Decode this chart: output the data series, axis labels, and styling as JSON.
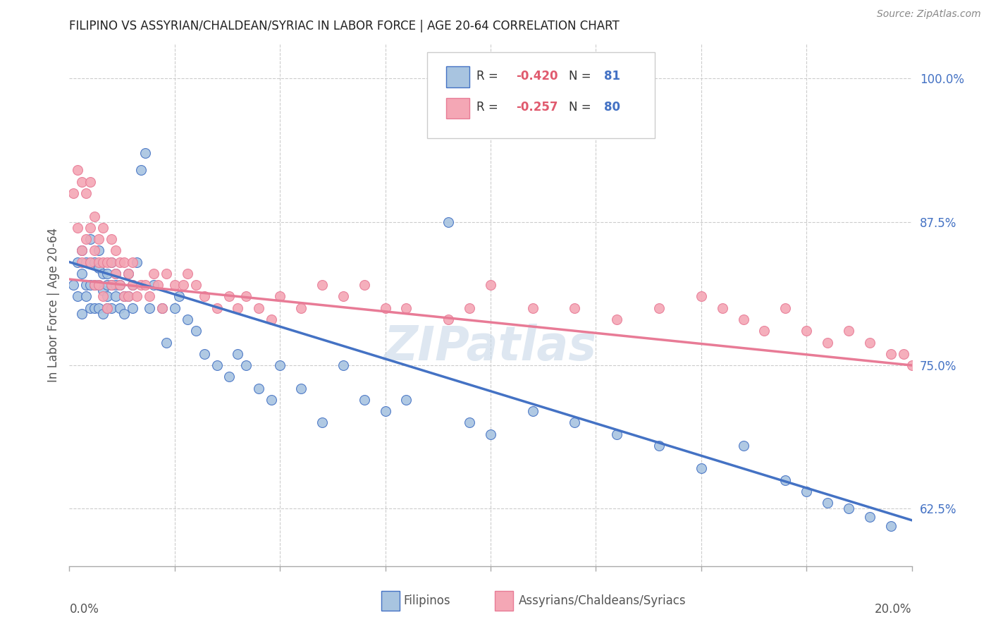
{
  "title": "FILIPINO VS ASSYRIAN/CHALDEAN/SYRIAC IN LABOR FORCE | AGE 20-64 CORRELATION CHART",
  "source": "Source: ZipAtlas.com",
  "ylabel": "In Labor Force | Age 20-64",
  "ytick_labels": [
    "62.5%",
    "75.0%",
    "87.5%",
    "100.0%"
  ],
  "ytick_values": [
    0.625,
    0.75,
    0.875,
    1.0
  ],
  "xlim": [
    0.0,
    0.2
  ],
  "ylim": [
    0.575,
    1.03
  ],
  "blue_color": "#a8c4e0",
  "blue_line_color": "#4472c4",
  "pink_color": "#f4a7b5",
  "pink_line_color": "#e87b96",
  "blue_R": -0.42,
  "blue_N": 81,
  "pink_R": -0.257,
  "pink_N": 80,
  "watermark": "ZIPatlas",
  "watermark_color": "#c8d8e8",
  "blue_x": [
    0.001,
    0.002,
    0.002,
    0.003,
    0.003,
    0.003,
    0.004,
    0.004,
    0.004,
    0.005,
    0.005,
    0.005,
    0.005,
    0.006,
    0.006,
    0.006,
    0.007,
    0.007,
    0.007,
    0.007,
    0.008,
    0.008,
    0.008,
    0.009,
    0.009,
    0.009,
    0.009,
    0.01,
    0.01,
    0.01,
    0.011,
    0.011,
    0.011,
    0.012,
    0.012,
    0.013,
    0.013,
    0.014,
    0.014,
    0.015,
    0.015,
    0.016,
    0.017,
    0.018,
    0.019,
    0.02,
    0.022,
    0.023,
    0.025,
    0.026,
    0.028,
    0.03,
    0.032,
    0.035,
    0.038,
    0.04,
    0.042,
    0.045,
    0.048,
    0.05,
    0.055,
    0.06,
    0.065,
    0.07,
    0.075,
    0.08,
    0.09,
    0.095,
    0.1,
    0.11,
    0.12,
    0.13,
    0.14,
    0.15,
    0.16,
    0.17,
    0.175,
    0.18,
    0.185,
    0.19,
    0.195
  ],
  "blue_y": [
    0.82,
    0.84,
    0.81,
    0.83,
    0.85,
    0.795,
    0.82,
    0.84,
    0.81,
    0.8,
    0.82,
    0.84,
    0.86,
    0.8,
    0.82,
    0.84,
    0.8,
    0.82,
    0.835,
    0.85,
    0.795,
    0.815,
    0.83,
    0.8,
    0.82,
    0.81,
    0.83,
    0.8,
    0.82,
    0.84,
    0.81,
    0.83,
    0.82,
    0.8,
    0.82,
    0.795,
    0.81,
    0.81,
    0.83,
    0.8,
    0.82,
    0.84,
    0.92,
    0.935,
    0.8,
    0.82,
    0.8,
    0.77,
    0.8,
    0.81,
    0.79,
    0.78,
    0.76,
    0.75,
    0.74,
    0.76,
    0.75,
    0.73,
    0.72,
    0.75,
    0.73,
    0.7,
    0.75,
    0.72,
    0.71,
    0.72,
    0.875,
    0.7,
    0.69,
    0.71,
    0.7,
    0.69,
    0.68,
    0.66,
    0.68,
    0.65,
    0.64,
    0.63,
    0.625,
    0.618,
    0.61
  ],
  "pink_x": [
    0.001,
    0.002,
    0.002,
    0.003,
    0.003,
    0.003,
    0.004,
    0.004,
    0.005,
    0.005,
    0.005,
    0.006,
    0.006,
    0.006,
    0.007,
    0.007,
    0.007,
    0.008,
    0.008,
    0.008,
    0.009,
    0.009,
    0.01,
    0.01,
    0.01,
    0.011,
    0.011,
    0.012,
    0.012,
    0.013,
    0.013,
    0.014,
    0.014,
    0.015,
    0.015,
    0.016,
    0.017,
    0.018,
    0.019,
    0.02,
    0.021,
    0.022,
    0.023,
    0.025,
    0.027,
    0.028,
    0.03,
    0.032,
    0.035,
    0.038,
    0.04,
    0.042,
    0.045,
    0.048,
    0.05,
    0.055,
    0.06,
    0.065,
    0.07,
    0.075,
    0.08,
    0.09,
    0.095,
    0.1,
    0.11,
    0.12,
    0.13,
    0.14,
    0.15,
    0.155,
    0.16,
    0.165,
    0.17,
    0.175,
    0.18,
    0.185,
    0.19,
    0.195,
    0.198,
    0.2
  ],
  "pink_y": [
    0.9,
    0.87,
    0.92,
    0.84,
    0.91,
    0.85,
    0.86,
    0.9,
    0.84,
    0.87,
    0.91,
    0.82,
    0.85,
    0.88,
    0.82,
    0.84,
    0.86,
    0.81,
    0.84,
    0.87,
    0.8,
    0.84,
    0.82,
    0.84,
    0.86,
    0.83,
    0.85,
    0.82,
    0.84,
    0.81,
    0.84,
    0.81,
    0.83,
    0.82,
    0.84,
    0.81,
    0.82,
    0.82,
    0.81,
    0.83,
    0.82,
    0.8,
    0.83,
    0.82,
    0.82,
    0.83,
    0.82,
    0.81,
    0.8,
    0.81,
    0.8,
    0.81,
    0.8,
    0.79,
    0.81,
    0.8,
    0.82,
    0.81,
    0.82,
    0.8,
    0.8,
    0.79,
    0.8,
    0.82,
    0.8,
    0.8,
    0.79,
    0.8,
    0.81,
    0.8,
    0.79,
    0.78,
    0.8,
    0.78,
    0.77,
    0.78,
    0.77,
    0.76,
    0.76,
    0.75
  ],
  "blue_line_x": [
    0.0,
    0.2
  ],
  "blue_line_y": [
    0.84,
    0.615
  ],
  "pink_line_x": [
    0.0,
    0.2
  ],
  "pink_line_y": [
    0.825,
    0.75
  ]
}
